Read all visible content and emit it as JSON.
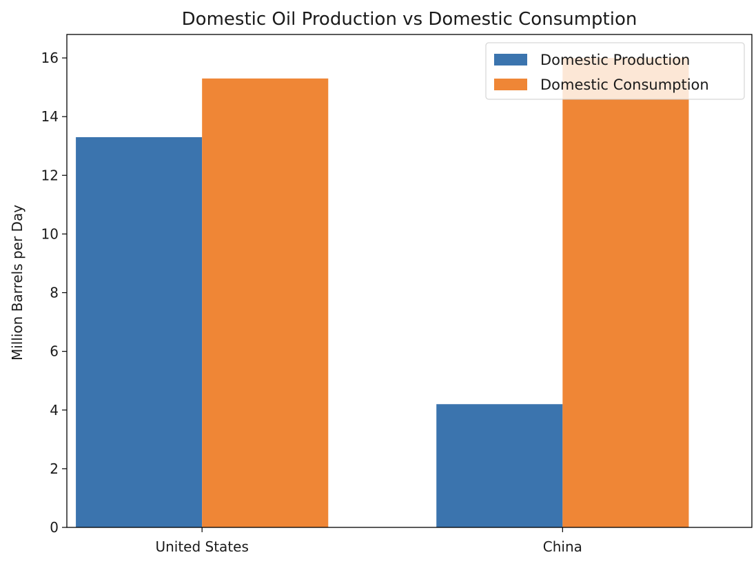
{
  "chart_data": {
    "type": "bar",
    "title": "Domestic Oil Production vs Domestic Consumption",
    "xlabel": "",
    "ylabel": "Million Barrels per Day",
    "categories": [
      "United States",
      "China"
    ],
    "series": [
      {
        "name": "Domestic Production",
        "color": "#3b74ae",
        "values": [
          13.3,
          4.2
        ]
      },
      {
        "name": "Domestic Consumption",
        "color": "#ef8636",
        "values": [
          15.3,
          16.0
        ]
      }
    ],
    "ylim": [
      0,
      16.8
    ],
    "yticks": [
      0,
      2,
      4,
      6,
      8,
      10,
      12,
      14,
      16
    ],
    "legend_position": "top-right",
    "grid": false
  }
}
